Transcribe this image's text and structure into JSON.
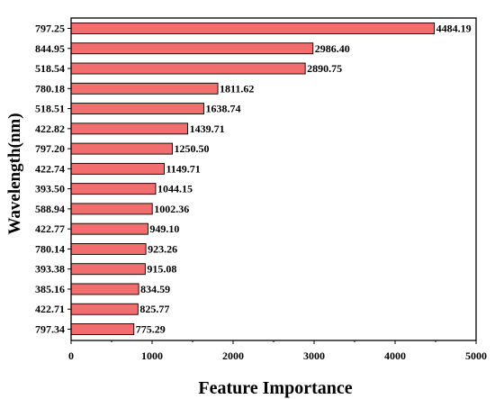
{
  "chart_data": {
    "type": "bar",
    "orientation": "horizontal",
    "title": "",
    "xlabel": "Feature Importance",
    "ylabel": "Wavelength(nm)",
    "xlim": [
      0,
      5000
    ],
    "xticks": [
      "0",
      "1000",
      "2000",
      "3000",
      "4000",
      "5000"
    ],
    "grid": false,
    "legend": "none",
    "bar_color": "#f26d6d",
    "categories": [
      "797.25",
      "844.95",
      "518.54",
      "780.18",
      "518.51",
      "422.82",
      "797.20",
      "422.74",
      "393.50",
      "588.94",
      "422.77",
      "780.14",
      "393.38",
      "385.16",
      "422.71",
      "797.34"
    ],
    "values": [
      4484.19,
      2986.4,
      2890.75,
      1811.62,
      1638.74,
      1439.71,
      1250.5,
      1149.71,
      1044.15,
      1002.36,
      949.1,
      923.26,
      915.08,
      834.59,
      825.77,
      775.29
    ],
    "value_labels": [
      "4484.19",
      "2986.40",
      "2890.75",
      "1811.62",
      "1638.74",
      "1439.71",
      "1250.50",
      "1149.71",
      "1044.15",
      "1002.36",
      "949.10",
      "923.26",
      "915.08",
      "834.59",
      "825.77",
      "775.29"
    ]
  }
}
